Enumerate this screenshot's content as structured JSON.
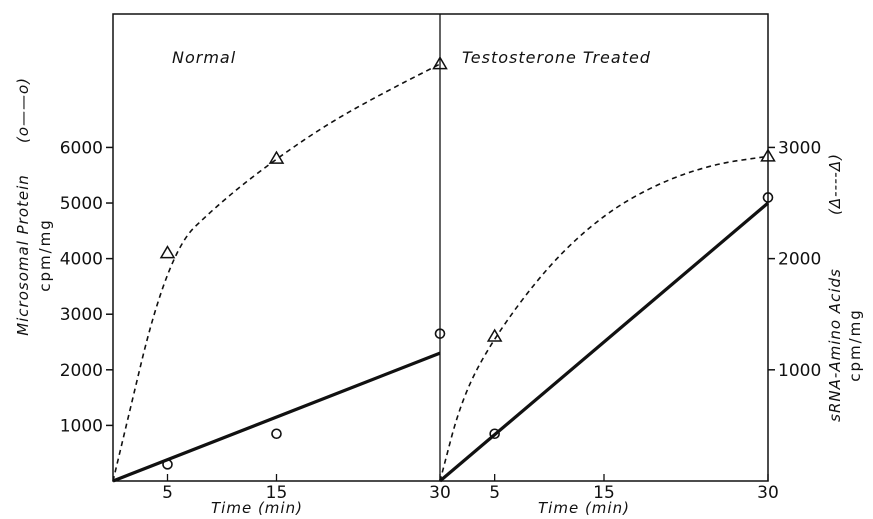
{
  "chart_data": {
    "type": "line",
    "title": "",
    "left_axis": {
      "label": "Microsomal Protein",
      "unit": "cpm/mg",
      "legend_symbol": "(o——o)",
      "ticks": [
        "1000",
        "2000",
        "3000",
        "4000",
        "5000",
        "6000"
      ],
      "ylim": [
        0,
        8400
      ]
    },
    "right_axis": {
      "label": "sRNA-Amino Acids",
      "unit": "cpm/mg",
      "legend_symbol": "(Δ----Δ)",
      "ticks": [
        "1000",
        "2000",
        "3000"
      ],
      "ylim": [
        0,
        4200
      ]
    },
    "x_axis": {
      "label": "Time (min)",
      "ticks": [
        "5",
        "15",
        "30"
      ],
      "xlim": [
        0,
        30
      ]
    },
    "panels": [
      {
        "title": "Normal",
        "protein_fit": [
          [
            0,
            0
          ],
          [
            30,
            2300
          ]
        ],
        "protein_points": [
          [
            5,
            300
          ],
          [
            15,
            850
          ],
          [
            30,
            2650
          ]
        ],
        "srna_points": [
          [
            5,
            2050
          ],
          [
            15,
            2900
          ],
          [
            30,
            3750
          ]
        ],
        "srna_curve": [
          [
            0,
            0
          ],
          [
            5,
            2050
          ],
          [
            10,
            2520
          ],
          [
            15,
            2900
          ],
          [
            20,
            3230
          ],
          [
            25,
            3500
          ],
          [
            30,
            3750
          ]
        ]
      },
      {
        "title": "Testosterone Treated",
        "protein_fit": [
          [
            0,
            0
          ],
          [
            30,
            5000
          ]
        ],
        "protein_points": [
          [
            5,
            850
          ],
          [
            30,
            5100
          ]
        ],
        "srna_points": [
          [
            5,
            1300
          ],
          [
            30,
            2920
          ]
        ],
        "srna_curve": [
          [
            0,
            0
          ],
          [
            2,
            750
          ],
          [
            5,
            1300
          ],
          [
            10,
            1950
          ],
          [
            15,
            2400
          ],
          [
            20,
            2680
          ],
          [
            25,
            2850
          ],
          [
            30,
            2920
          ]
        ]
      }
    ],
    "grid": false,
    "legend": "axis-labels"
  }
}
